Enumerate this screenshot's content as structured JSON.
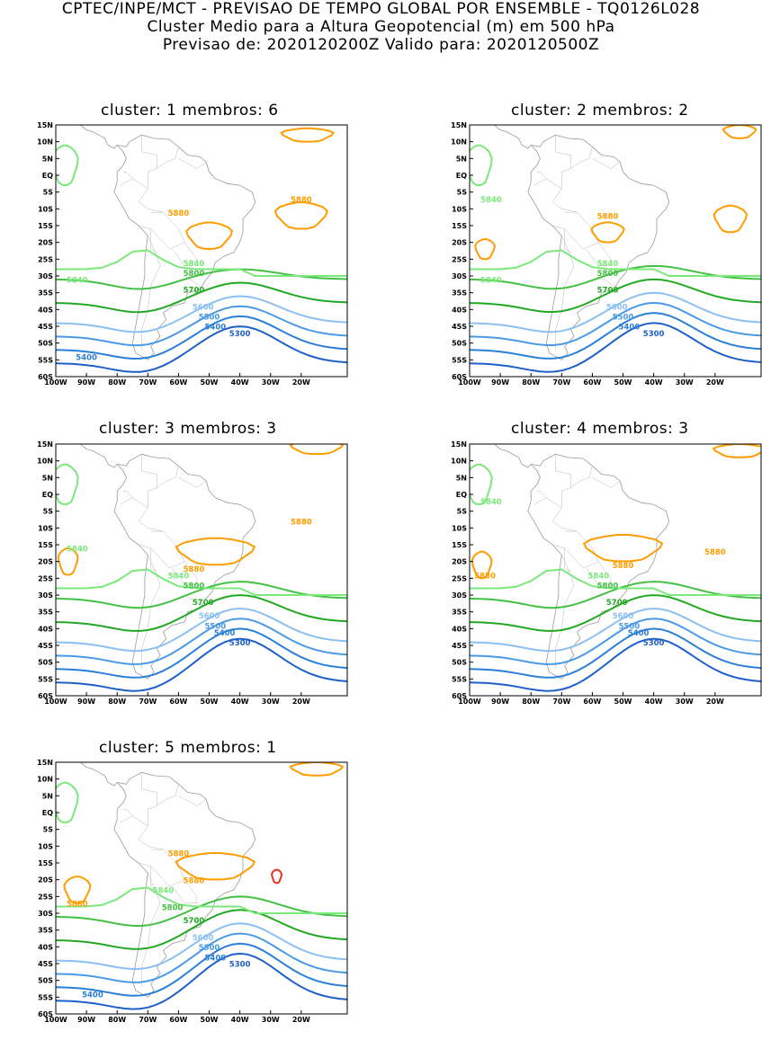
{
  "header": {
    "line1": "CPTEC/INPE/MCT - PREVISAO DE TEMPO GLOBAL POR ENSEMBLE - TQ0126L028",
    "line2": "Cluster Medio para a Altura Geopotencial (m) em 500 hPa",
    "line3": "Previsao de: 2020120200Z    Valido para: 2020120500Z"
  },
  "axes": {
    "lat_labels": [
      "15N",
      "10N",
      "5N",
      "EQ",
      "5S",
      "10S",
      "15S",
      "20S",
      "25S",
      "30S",
      "35S",
      "40S",
      "45S",
      "50S",
      "55S",
      "60S"
    ],
    "lon_labels": [
      "100W",
      "90W",
      "80W",
      "70W",
      "60W",
      "50W",
      "40W",
      "30W",
      "20W"
    ]
  },
  "colors": {
    "c5300": "#1f5fc8",
    "c5400": "#2a7fd8",
    "c5500": "#4a9ae6",
    "c5600": "#8cc0f2",
    "c5700": "#22a822",
    "c5800": "#44c044",
    "c5840": "#7ae87a",
    "c5880": "#ff9c00",
    "c5920": "#e8321e",
    "coast": "#9a9a9a"
  },
  "panels": [
    {
      "title": "cluster: 1   membros: 6",
      "labels": [
        "5880",
        "5880",
        "5840",
        "5840",
        "5800",
        "5700",
        "5600",
        "5500",
        "5400",
        "5400",
        "5300"
      ]
    },
    {
      "title": "cluster: 2   membros: 2",
      "labels": [
        "5840",
        "5880",
        "5840",
        "5840",
        "5800",
        "5700",
        "5600",
        "5500",
        "5400",
        "5300"
      ]
    },
    {
      "title": "cluster: 3   membros: 3",
      "labels": [
        "5840",
        "5880",
        "5880",
        "5840",
        "5800",
        "5700",
        "5600",
        "5500",
        "5400",
        "5300"
      ]
    },
    {
      "title": "cluster: 4   membros: 3",
      "labels": [
        "5840",
        "5880",
        "5880",
        "5880",
        "5840",
        "5800",
        "5700",
        "5600",
        "5500",
        "5400",
        "5300"
      ]
    },
    {
      "title": "cluster: 5   membros: 1",
      "labels": [
        "5880",
        "5880",
        "5880",
        "5840",
        "5800",
        "5700",
        "5600",
        "5500",
        "5400",
        "5400",
        "5300"
      ]
    }
  ]
}
